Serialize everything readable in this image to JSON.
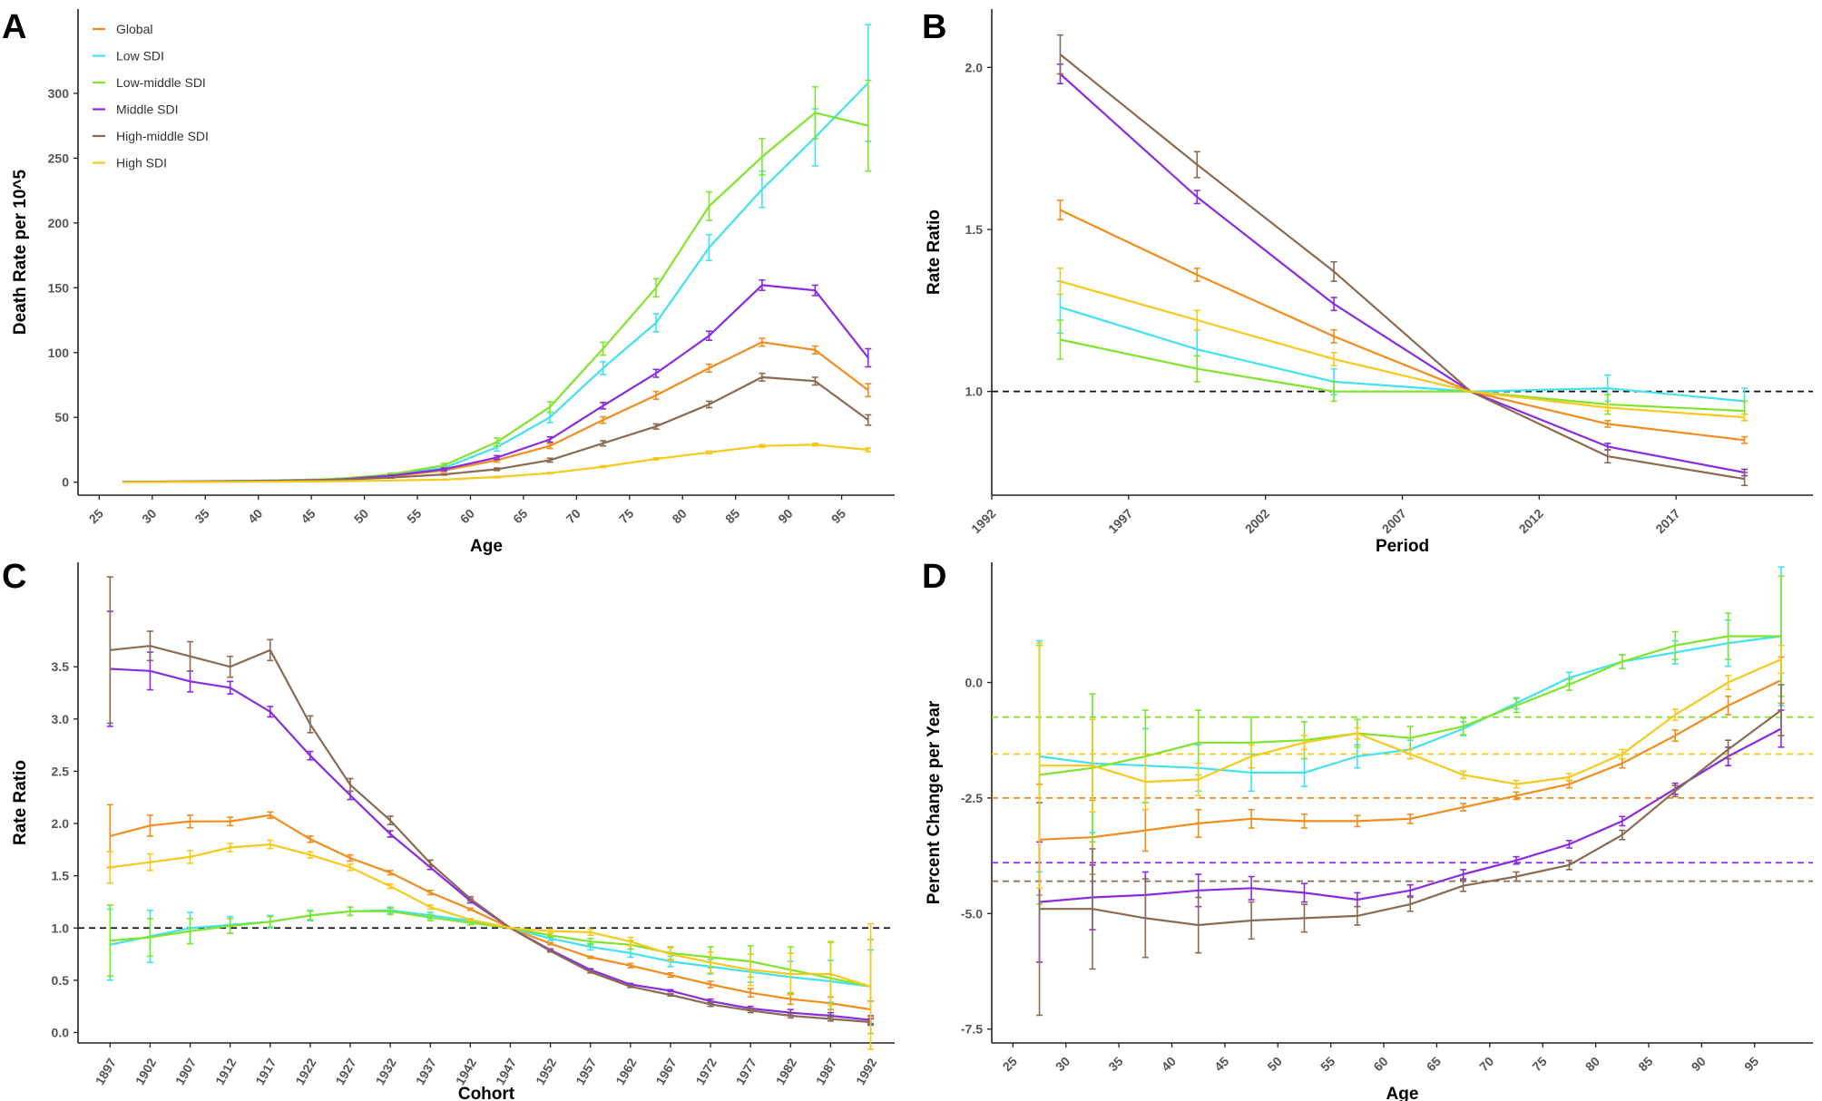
{
  "series_info": [
    {
      "key": "global",
      "name": "Global",
      "color": "#F28C1C"
    },
    {
      "key": "low",
      "name": "Low SDI",
      "color": "#3FE3F0"
    },
    {
      "key": "lowmid",
      "name": "Low-middle SDI",
      "color": "#7FE52A"
    },
    {
      "key": "mid",
      "name": "Middle SDI",
      "color": "#8A2BE2"
    },
    {
      "key": "highmid",
      "name": "High-middle SDI",
      "color": "#8B6A52"
    },
    {
      "key": "high",
      "name": "High SDI",
      "color": "#F7C91A"
    }
  ],
  "chart_data": [
    {
      "panel": "A",
      "type": "line",
      "xlabel": "Age",
      "ylabel": "Death Rate per 10^5",
      "xlim": [
        23,
        100
      ],
      "ylim": [
        -10,
        365
      ],
      "xticks": [
        25,
        30,
        35,
        40,
        45,
        50,
        55,
        60,
        65,
        70,
        75,
        80,
        85,
        90,
        95
      ],
      "yticks": [
        0,
        50,
        100,
        150,
        200,
        250,
        300
      ],
      "legend": "top-left",
      "x": [
        27.5,
        32.5,
        37.5,
        42.5,
        47.5,
        52.5,
        57.5,
        62.5,
        67.5,
        72.5,
        77.5,
        82.5,
        87.5,
        92.5,
        97.5
      ],
      "series": [
        {
          "key": "global",
          "values": [
            0.3,
            0.5,
            0.8,
            1.2,
            2,
            4.5,
            9,
            17,
            28,
            48,
            67,
            88,
            108,
            102,
            71
          ],
          "err": [
            0.1,
            0.1,
            0.1,
            0.2,
            0.3,
            0.5,
            1,
            1.5,
            2,
            2.5,
            3,
            3,
            3,
            3,
            5
          ]
        },
        {
          "key": "low",
          "values": [
            0.3,
            0.6,
            1,
            1.5,
            2.5,
            6,
            11,
            27,
            50,
            88,
            123,
            181,
            226,
            266,
            308
          ],
          "err": [
            0.1,
            0.1,
            0.2,
            0.3,
            0.5,
            1,
            1.5,
            3,
            4,
            5,
            7,
            10,
            14,
            22,
            45
          ]
        },
        {
          "key": "lowmid",
          "values": [
            0.3,
            0.6,
            1,
            1.5,
            2.5,
            6,
            13,
            31,
            58,
            103,
            150,
            213,
            251,
            285,
            275
          ],
          "err": [
            0.1,
            0.1,
            0.2,
            0.3,
            0.5,
            1,
            1.5,
            3,
            4,
            5,
            7,
            11,
            14,
            20,
            35
          ]
        },
        {
          "key": "mid",
          "values": [
            0.3,
            0.5,
            0.8,
            1.2,
            2,
            5,
            10,
            19,
            33,
            59,
            84,
            113,
            152,
            148,
            96
          ],
          "err": [
            0.1,
            0.1,
            0.1,
            0.2,
            0.3,
            0.5,
            1,
            1.5,
            2,
            2.5,
            3,
            3.5,
            4,
            4,
            7
          ]
        },
        {
          "key": "highmid",
          "values": [
            0.3,
            0.4,
            0.6,
            1,
            1.8,
            3.5,
            6,
            10,
            17,
            30,
            43,
            60,
            81,
            78,
            48
          ],
          "err": [
            0.1,
            0.1,
            0.1,
            0.1,
            0.2,
            0.3,
            0.5,
            1,
            1.5,
            2,
            2,
            2.5,
            3,
            3,
            4
          ]
        },
        {
          "key": "high",
          "values": [
            0.1,
            0.2,
            0.3,
            0.5,
            0.8,
            1.3,
            2,
            4,
            7,
            12,
            18,
            23,
            28,
            29,
            25
          ],
          "err": [
            0.05,
            0.05,
            0.05,
            0.1,
            0.1,
            0.2,
            0.3,
            0.5,
            0.5,
            0.7,
            0.8,
            1,
            1,
            1,
            1.5
          ]
        }
      ]
    },
    {
      "panel": "B",
      "type": "line",
      "xlabel": "Period",
      "ylabel": "Rate Ratio",
      "xlim": [
        1992,
        2022
      ],
      "ylim": [
        0.68,
        2.18
      ],
      "xticks": [
        1992,
        1997,
        2002,
        2007,
        2012,
        2017
      ],
      "yticks": [
        1.0,
        1.5,
        2.0
      ],
      "ref_line": 1.0,
      "x": [
        1994.5,
        1999.5,
        2004.5,
        2009.5,
        2014.5,
        2019.5
      ],
      "series": [
        {
          "key": "global",
          "values": [
            1.56,
            1.36,
            1.17,
            1.0,
            0.9,
            0.85
          ],
          "err": [
            0.03,
            0.02,
            0.02,
            0,
            0.01,
            0.01
          ]
        },
        {
          "key": "low",
          "values": [
            1.26,
            1.13,
            1.03,
            1.0,
            1.01,
            0.97
          ],
          "err": [
            0.08,
            0.06,
            0.04,
            0,
            0.04,
            0.04
          ]
        },
        {
          "key": "lowmid",
          "values": [
            1.16,
            1.07,
            1.0,
            1.0,
            0.96,
            0.94
          ],
          "err": [
            0.06,
            0.04,
            0.03,
            0,
            0.03,
            0.03
          ]
        },
        {
          "key": "mid",
          "values": [
            1.98,
            1.6,
            1.27,
            1.0,
            0.83,
            0.75
          ],
          "err": [
            0.03,
            0.02,
            0.02,
            0,
            0.01,
            0.01
          ]
        },
        {
          "key": "highmid",
          "values": [
            2.04,
            1.7,
            1.37,
            1.0,
            0.8,
            0.73
          ],
          "err": [
            0.06,
            0.04,
            0.03,
            0,
            0.02,
            0.02
          ]
        },
        {
          "key": "high",
          "values": [
            1.34,
            1.22,
            1.1,
            1.0,
            0.95,
            0.92
          ],
          "err": [
            0.04,
            0.03,
            0.02,
            0,
            0.01,
            0.01
          ]
        }
      ]
    },
    {
      "panel": "C",
      "type": "line",
      "xlabel": "Cohort",
      "ylabel": "Rate Ratio",
      "xlim": [
        1893,
        1995
      ],
      "ylim": [
        -0.1,
        4.5
      ],
      "xticks": [
        1897,
        1902,
        1907,
        1912,
        1917,
        1922,
        1927,
        1932,
        1937,
        1942,
        1947,
        1952,
        1957,
        1962,
        1967,
        1972,
        1977,
        1982,
        1987,
        1992
      ],
      "yticks": [
        0.0,
        0.5,
        1.0,
        1.5,
        2.0,
        2.5,
        3.0,
        3.5
      ],
      "ref_line": 1.0,
      "x": [
        1897,
        1902,
        1907,
        1912,
        1917,
        1922,
        1927,
        1932,
        1937,
        1942,
        1947,
        1952,
        1957,
        1962,
        1967,
        1972,
        1977,
        1982,
        1987,
        1992
      ],
      "series": [
        {
          "key": "global",
          "values": [
            1.88,
            1.98,
            2.02,
            2.02,
            2.08,
            1.85,
            1.67,
            1.53,
            1.34,
            1.18,
            1.0,
            0.85,
            0.72,
            0.64,
            0.55,
            0.46,
            0.38,
            0.32,
            0.28,
            0.22
          ],
          "err": [
            0.3,
            0.1,
            0.06,
            0.04,
            0.03,
            0.03,
            0.03,
            0.02,
            0.02,
            0.01,
            0,
            0.01,
            0.01,
            0.02,
            0.02,
            0.03,
            0.04,
            0.05,
            0.06,
            0.08
          ]
        },
        {
          "key": "low",
          "values": [
            0.84,
            0.92,
            1.0,
            1.03,
            1.06,
            1.12,
            1.16,
            1.17,
            1.12,
            1.07,
            1.0,
            0.9,
            0.82,
            0.76,
            0.68,
            0.63,
            0.58,
            0.53,
            0.49,
            0.44
          ],
          "err": [
            0.34,
            0.25,
            0.15,
            0.08,
            0.06,
            0.05,
            0.04,
            0.03,
            0.03,
            0.02,
            0,
            0.02,
            0.03,
            0.04,
            0.05,
            0.07,
            0.1,
            0.15,
            0.2,
            0.35
          ]
        },
        {
          "key": "lowmid",
          "values": [
            0.88,
            0.91,
            0.97,
            1.02,
            1.06,
            1.12,
            1.16,
            1.16,
            1.1,
            1.05,
            1.0,
            0.93,
            0.87,
            0.84,
            0.76,
            0.72,
            0.68,
            0.6,
            0.52,
            0.44
          ],
          "err": [
            0.34,
            0.18,
            0.12,
            0.07,
            0.05,
            0.04,
            0.04,
            0.03,
            0.03,
            0.02,
            0,
            0.02,
            0.03,
            0.04,
            0.06,
            0.1,
            0.15,
            0.22,
            0.35,
            0.45
          ]
        },
        {
          "key": "mid",
          "values": [
            3.48,
            3.46,
            3.36,
            3.3,
            3.07,
            2.65,
            2.27,
            1.9,
            1.58,
            1.26,
            1.0,
            0.79,
            0.6,
            0.46,
            0.4,
            0.3,
            0.23,
            0.19,
            0.16,
            0.12
          ],
          "err": [
            0.55,
            0.18,
            0.1,
            0.06,
            0.05,
            0.04,
            0.04,
            0.03,
            0.02,
            0.02,
            0,
            0.01,
            0.01,
            0.01,
            0.01,
            0.02,
            0.02,
            0.03,
            0.03,
            0.04
          ]
        },
        {
          "key": "highmid",
          "values": [
            3.66,
            3.7,
            3.6,
            3.5,
            3.66,
            2.95,
            2.37,
            2.03,
            1.62,
            1.28,
            1.0,
            0.78,
            0.58,
            0.44,
            0.36,
            0.27,
            0.21,
            0.16,
            0.13,
            0.1
          ],
          "err": [
            0.7,
            0.14,
            0.14,
            0.1,
            0.1,
            0.08,
            0.06,
            0.04,
            0.03,
            0.02,
            0,
            0.01,
            0.01,
            0.01,
            0.01,
            0.02,
            0.02,
            0.02,
            0.02,
            0.03
          ]
        },
        {
          "key": "high",
          "values": [
            1.58,
            1.63,
            1.68,
            1.77,
            1.8,
            1.7,
            1.58,
            1.4,
            1.2,
            1.08,
            1.0,
            0.97,
            0.96,
            0.87,
            0.75,
            0.67,
            0.6,
            0.56,
            0.56,
            0.44
          ],
          "err": [
            0.15,
            0.08,
            0.06,
            0.04,
            0.04,
            0.03,
            0.03,
            0.02,
            0.02,
            0.01,
            0,
            0.02,
            0.03,
            0.04,
            0.06,
            0.1,
            0.15,
            0.2,
            0.3,
            0.6
          ]
        }
      ]
    },
    {
      "panel": "D",
      "type": "line",
      "xlabel": "Age",
      "ylabel": "Percent Change per Year",
      "xlim": [
        23,
        100.5
      ],
      "ylim": [
        -7.8,
        2.6
      ],
      "xticks": [
        25,
        30,
        35,
        40,
        45,
        50,
        55,
        60,
        65,
        70,
        75,
        80,
        85,
        90,
        95
      ],
      "yticks": [
        -7.5,
        -5.0,
        -2.5,
        0.0
      ],
      "x": [
        27.5,
        32.5,
        37.5,
        42.5,
        47.5,
        52.5,
        57.5,
        62.5,
        67.5,
        72.5,
        77.5,
        82.5,
        87.5,
        92.5,
        97.5
      ],
      "series": [
        {
          "key": "global",
          "ref": -2.5,
          "values": [
            -3.4,
            -3.35,
            -3.2,
            -3.05,
            -2.95,
            -3.0,
            -3.0,
            -2.95,
            -2.7,
            -2.45,
            -2.2,
            -1.75,
            -1.15,
            -0.5,
            0.05
          ],
          "err": [
            1.2,
            0.8,
            0.45,
            0.3,
            0.2,
            0.15,
            0.12,
            0.1,
            0.08,
            0.08,
            0.08,
            0.1,
            0.12,
            0.2,
            0.5
          ]
        },
        {
          "key": "low",
          "values": [
            -1.6,
            -1.75,
            -1.8,
            -1.85,
            -1.95,
            -1.95,
            -1.6,
            -1.45,
            -1.0,
            -0.45,
            0.1,
            0.45,
            0.65,
            0.85,
            1.0
          ],
          "err": [
            2.5,
            1.5,
            0.8,
            0.5,
            0.4,
            0.3,
            0.25,
            0.2,
            0.15,
            0.12,
            0.12,
            0.15,
            0.25,
            0.5,
            1.5
          ]
        },
        {
          "key": "lowmid",
          "ref": -0.75,
          "values": [
            -2.0,
            -1.85,
            -1.6,
            -1.3,
            -1.3,
            -1.25,
            -1.1,
            -1.2,
            -0.95,
            -0.5,
            -0.05,
            0.45,
            0.8,
            1.0,
            1.0
          ],
          "err": [
            2.8,
            1.6,
            1.0,
            0.7,
            0.55,
            0.4,
            0.3,
            0.25,
            0.18,
            0.15,
            0.12,
            0.15,
            0.3,
            0.5,
            1.3
          ]
        },
        {
          "key": "mid",
          "ref": -3.9,
          "values": [
            -4.75,
            -4.65,
            -4.6,
            -4.5,
            -4.45,
            -4.55,
            -4.7,
            -4.5,
            -4.15,
            -3.85,
            -3.5,
            -3.0,
            -2.3,
            -1.6,
            -1.0
          ],
          "err": [
            1.3,
            0.7,
            0.5,
            0.35,
            0.25,
            0.2,
            0.15,
            0.12,
            0.1,
            0.08,
            0.08,
            0.1,
            0.12,
            0.2,
            0.4
          ]
        },
        {
          "key": "highmid",
          "ref": -4.3,
          "values": [
            -4.9,
            -4.9,
            -5.1,
            -5.25,
            -5.15,
            -5.1,
            -5.05,
            -4.8,
            -4.4,
            -4.2,
            -3.95,
            -3.3,
            -2.35,
            -1.45,
            -0.6
          ],
          "err": [
            2.3,
            1.3,
            0.85,
            0.6,
            0.4,
            0.3,
            0.2,
            0.15,
            0.12,
            0.1,
            0.1,
            0.1,
            0.12,
            0.2,
            0.55
          ]
        },
        {
          "key": "high",
          "ref": -1.55,
          "values": [
            -1.8,
            -1.8,
            -2.15,
            -2.1,
            -1.6,
            -1.3,
            -1.1,
            -1.55,
            -2.0,
            -2.2,
            -2.05,
            -1.55,
            -0.7,
            0.0,
            0.5
          ],
          "err": [
            2.65,
            1.0,
            0.6,
            0.35,
            0.25,
            0.15,
            0.12,
            0.1,
            0.08,
            0.08,
            0.08,
            0.1,
            0.12,
            0.15,
            0.3
          ]
        }
      ]
    }
  ]
}
